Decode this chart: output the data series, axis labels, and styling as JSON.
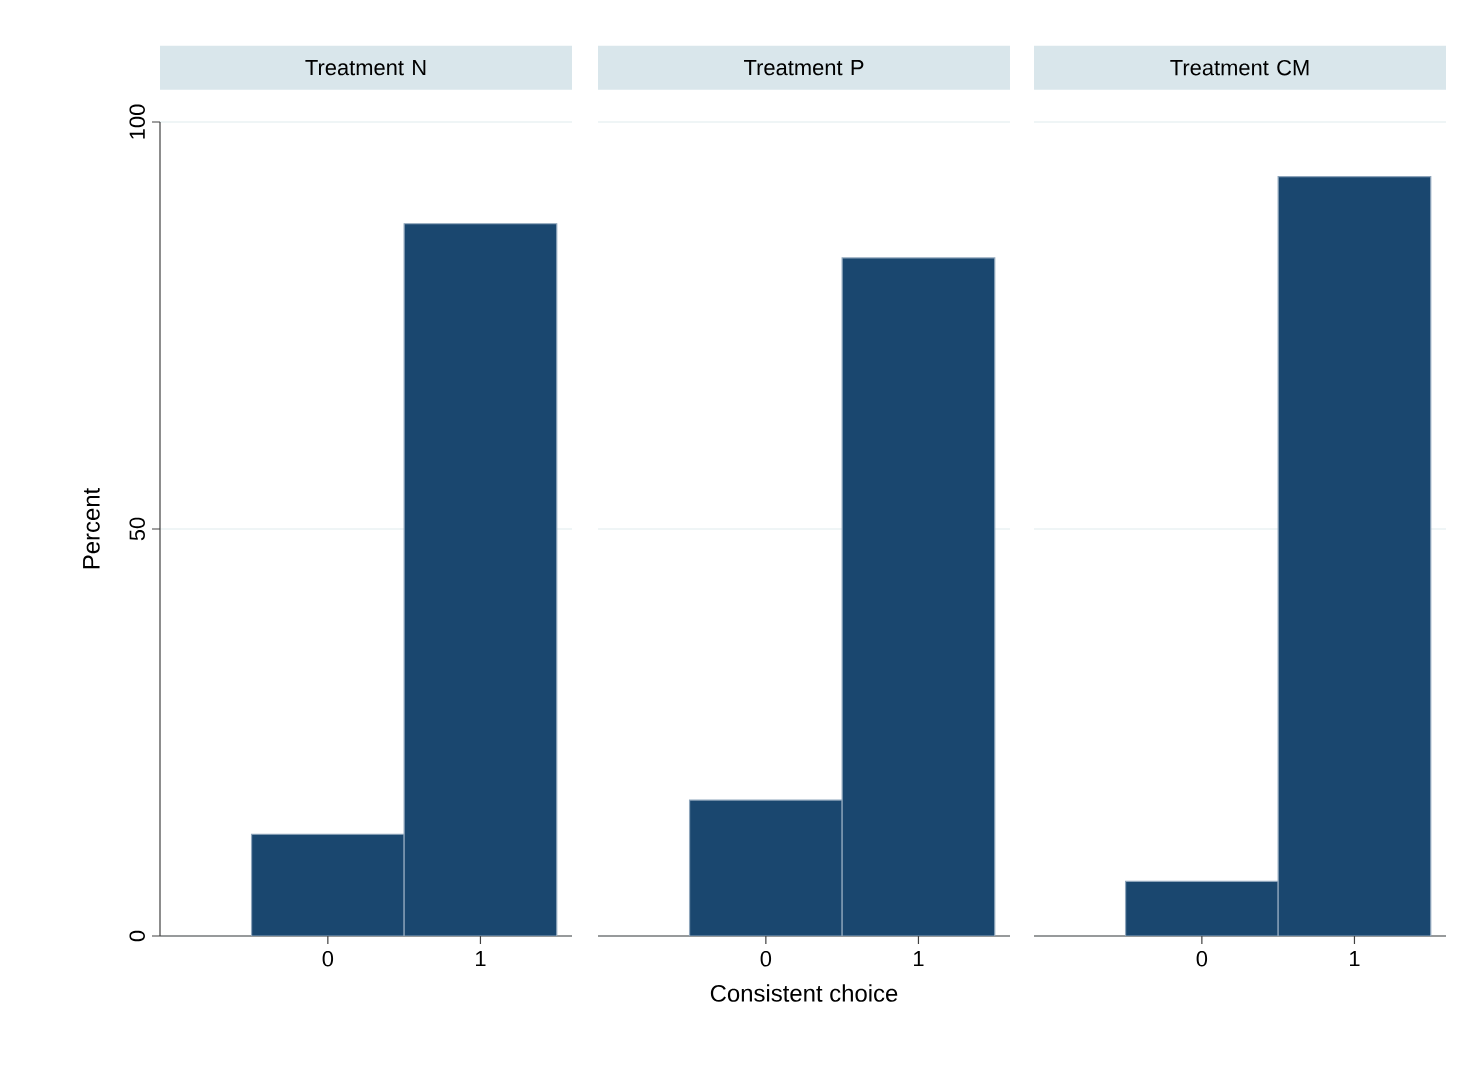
{
  "chart_data": [
    {
      "type": "histogram",
      "title": "Treatment N",
      "ylabel": "Percent",
      "bins": [
        -0.5,
        0.5,
        1.5
      ],
      "values": [
        12.5,
        87.5
      ],
      "color": "#1a476f",
      "xlim": [
        -1.1,
        1.6
      ],
      "xticks": [
        0,
        1
      ],
      "ylim": [
        0,
        100
      ],
      "yticks": [
        0,
        50,
        100
      ],
      "grid": "y"
    },
    {
      "type": "histogram",
      "title": "Treatment P",
      "xlabel": "Consistent choice",
      "bins": [
        -0.5,
        0.5,
        1.5
      ],
      "values": [
        16.7,
        83.3
      ],
      "color": "#1a476f",
      "xlim": [
        -1.1,
        1.6
      ],
      "xticks": [
        0,
        1
      ],
      "ylim": [
        0,
        100
      ],
      "yticks": [
        0,
        50,
        100
      ],
      "grid": "y",
      "tick_labels": "x"
    },
    {
      "type": "histogram",
      "title": "Treatment CM",
      "bins": [
        -0.5,
        0.5,
        1.5
      ],
      "values": [
        6.7,
        93.3
      ],
      "color": "#1a476f",
      "xlim": [
        -1.1,
        1.6
      ],
      "xticks": [
        0,
        1
      ],
      "ylim": [
        0,
        100
      ],
      "yticks": [
        0,
        50,
        100
      ],
      "grid": "y",
      "tick_labels": "x"
    }
  ]
}
